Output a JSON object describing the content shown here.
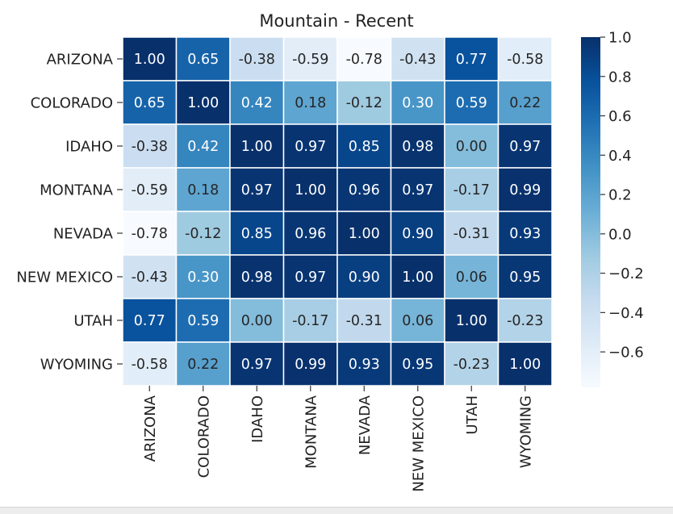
{
  "chart_data": {
    "type": "heatmap",
    "title": "Mountain - Recent",
    "rows": [
      "ARIZONA",
      "COLORADO",
      "IDAHO",
      "MONTANA",
      "NEVADA",
      "NEW MEXICO",
      "UTAH",
      "WYOMING"
    ],
    "columns": [
      "ARIZONA",
      "COLORADO",
      "IDAHO",
      "MONTANA",
      "NEVADA",
      "NEW MEXICO",
      "UTAH",
      "WYOMING"
    ],
    "values": [
      [
        1.0,
        0.65,
        -0.38,
        -0.59,
        -0.78,
        -0.43,
        0.77,
        -0.58
      ],
      [
        0.65,
        1.0,
        0.42,
        0.18,
        -0.12,
        0.3,
        0.59,
        0.22
      ],
      [
        -0.38,
        0.42,
        1.0,
        0.97,
        0.85,
        0.98,
        0.0,
        0.97
      ],
      [
        -0.59,
        0.18,
        0.97,
        1.0,
        0.96,
        0.97,
        -0.17,
        0.99
      ],
      [
        -0.78,
        -0.12,
        0.85,
        0.96,
        1.0,
        0.9,
        -0.31,
        0.93
      ],
      [
        -0.43,
        0.3,
        0.98,
        0.97,
        0.9,
        1.0,
        0.06,
        0.95
      ],
      [
        0.77,
        0.59,
        0.0,
        -0.17,
        -0.31,
        0.06,
        1.0,
        -0.23
      ],
      [
        -0.58,
        0.22,
        0.97,
        0.99,
        0.93,
        0.95,
        -0.23,
        1.0
      ]
    ],
    "value_format": "2 decimals",
    "colormap": "Blues",
    "color_range": [
      -0.78,
      1.0
    ],
    "colorbar_ticks": [
      1.0,
      0.8,
      0.6,
      0.4,
      0.2,
      0.0,
      -0.2,
      -0.4,
      -0.6
    ],
    "colorbar_tick_labels": [
      "1.0",
      "0.8",
      "0.6",
      "0.4",
      "0.2",
      "0.0",
      "−0.2",
      "−0.4",
      "−0.6"
    ],
    "xlabel": "",
    "ylabel": "",
    "grid": false,
    "cell_border_color": "#ffffff"
  }
}
